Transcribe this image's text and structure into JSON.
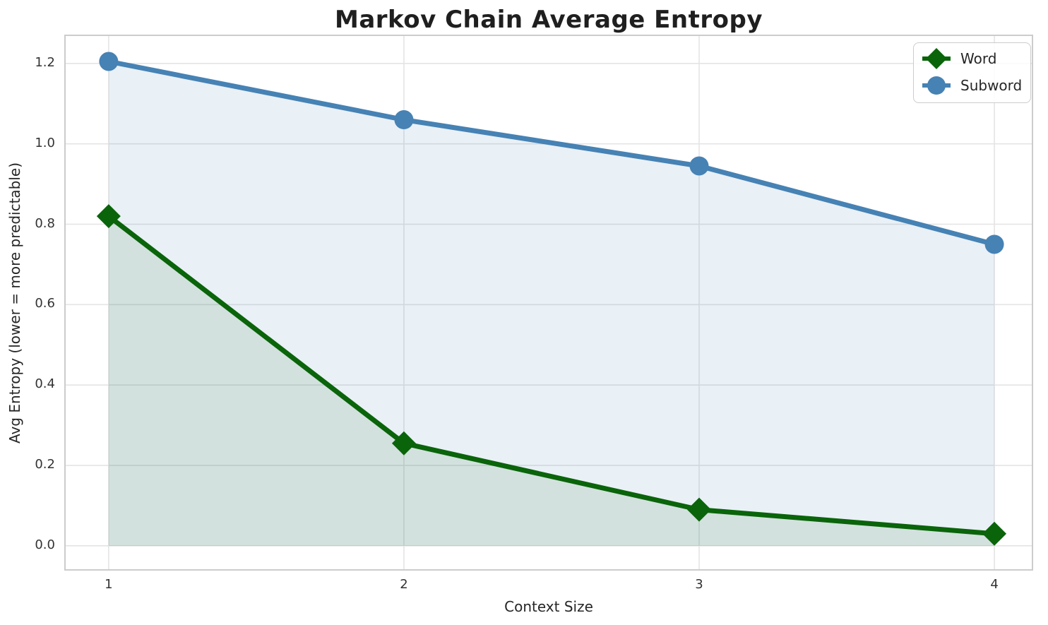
{
  "chart_data": {
    "type": "line",
    "title": "Markov Chain Average Entropy",
    "xlabel": "Context Size",
    "ylabel": "Avg Entropy (lower = more predictable)",
    "x": [
      1,
      2,
      3,
      4
    ],
    "xtick_labels": [
      "1",
      "2",
      "3",
      "4"
    ],
    "ytick_values": [
      0.0,
      0.2,
      0.4,
      0.6,
      0.8,
      1.0,
      1.2
    ],
    "ytick_labels": [
      "0.0",
      "0.2",
      "0.4",
      "0.6",
      "0.8",
      "1.0",
      "1.2"
    ],
    "xlim": [
      0.852,
      4.129
    ],
    "ylim": [
      -0.06,
      1.27
    ],
    "grid": true,
    "legend_position": "upper right",
    "series": [
      {
        "name": "Word",
        "marker": "diamond",
        "color": "#0a640a",
        "fill_color": "rgba(10,100,10,0.10)",
        "values": [
          0.82,
          0.255,
          0.09,
          0.03
        ]
      },
      {
        "name": "Subword",
        "marker": "circle",
        "color": "#4682b4",
        "fill_color": "rgba(70,130,180,0.12)",
        "values": [
          1.205,
          1.06,
          0.945,
          0.75
        ]
      }
    ],
    "colors": {
      "grid_line": "#e4e4e4",
      "spine": "#cccccc",
      "tick_label": "#333333",
      "title_text": "#1f1f1f"
    }
  }
}
